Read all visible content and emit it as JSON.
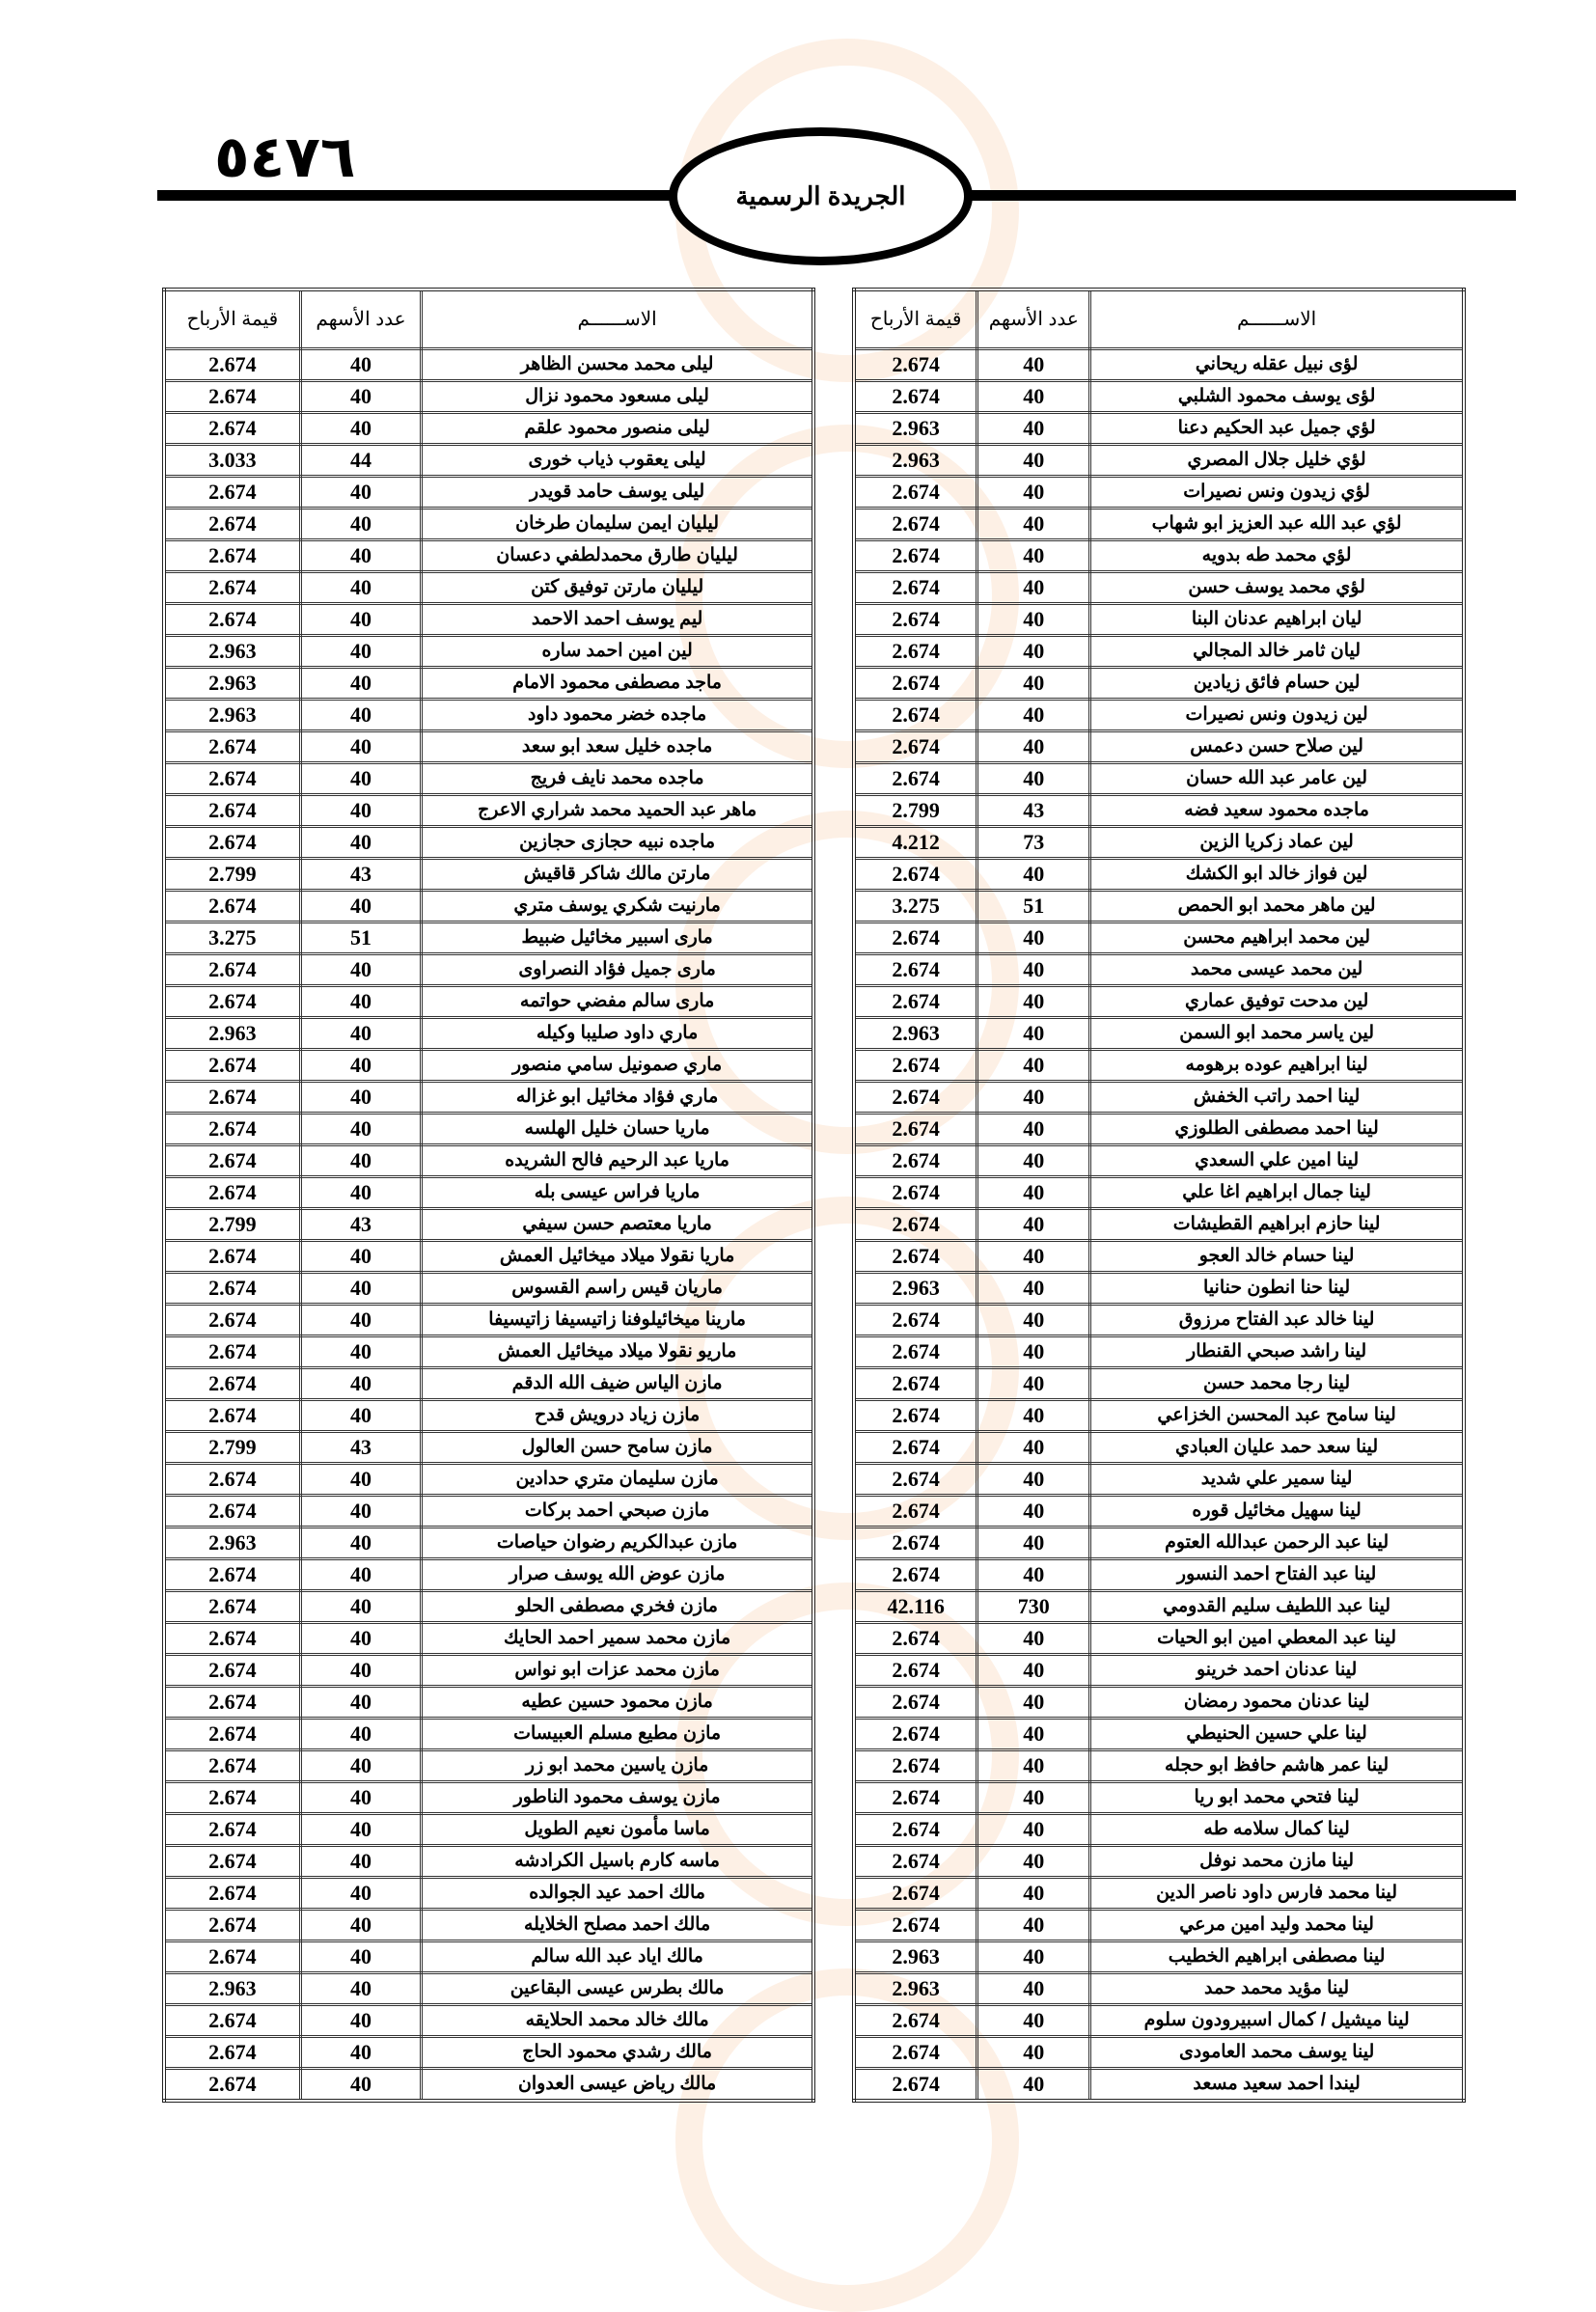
{
  "header": {
    "page_number": "٥٤٧٦",
    "title": "الجريدة الرسمية"
  },
  "colors": {
    "watermark_orange": "#f5aa6e",
    "text": "#000000"
  },
  "tables": [
    {
      "headers": {
        "name": "الاســــــم",
        "shares": "عدد الأسهم",
        "dividends": "قيمة الأرباح"
      },
      "rows": [
        [
          "لؤى نبيل عقله ريحاني",
          "40",
          "2.674"
        ],
        [
          "لؤى يوسف محمود الشلبي",
          "40",
          "2.674"
        ],
        [
          "لؤي جميل عبد الحكيم دعنا",
          "40",
          "2.963"
        ],
        [
          "لؤي خليل جلال المصري",
          "40",
          "2.963"
        ],
        [
          "لؤي زيدون ونس نصيرات",
          "40",
          "2.674"
        ],
        [
          "لؤي عبد الله عبد العزيز ابو شهاب",
          "40",
          "2.674"
        ],
        [
          "لؤي محمد طه بدويه",
          "40",
          "2.674"
        ],
        [
          "لؤي محمد يوسف حسن",
          "40",
          "2.674"
        ],
        [
          "ليان ابراهيم عدنان البنا",
          "40",
          "2.674"
        ],
        [
          "ليان ثامر خالد المجالي",
          "40",
          "2.674"
        ],
        [
          "لين حسام فائق زيادين",
          "40",
          "2.674"
        ],
        [
          "لين زيدون ونس نصيرات",
          "40",
          "2.674"
        ],
        [
          "لين صلاح حسن دعمس",
          "40",
          "2.674"
        ],
        [
          "لين عامر عبد الله حسان",
          "40",
          "2.674"
        ],
        [
          "ماجده محمود سعيد فضه",
          "43",
          "2.799"
        ],
        [
          "لين عماد زكريا الزين",
          "73",
          "4.212"
        ],
        [
          "لين فواز خالد ابو الكشك",
          "40",
          "2.674"
        ],
        [
          "لين ماهر محمد ابو الحمص",
          "51",
          "3.275"
        ],
        [
          "لين محمد ابراهيم محسن",
          "40",
          "2.674"
        ],
        [
          "لين محمد عيسى محمد",
          "40",
          "2.674"
        ],
        [
          "لين مدحت توفيق عماري",
          "40",
          "2.674"
        ],
        [
          "لين ياسر محمد ابو السمن",
          "40",
          "2.963"
        ],
        [
          "لينا ابراهيم عوده برهومه",
          "40",
          "2.674"
        ],
        [
          "لينا احمد راتب الخفش",
          "40",
          "2.674"
        ],
        [
          "لينا احمد مصطفى الطلوزي",
          "40",
          "2.674"
        ],
        [
          "لينا امين علي السعدي",
          "40",
          "2.674"
        ],
        [
          "لينا جمال ابراهيم اغا علي",
          "40",
          "2.674"
        ],
        [
          "لينا حازم ابراهيم القطيشات",
          "40",
          "2.674"
        ],
        [
          "لينا حسام خالد العجو",
          "40",
          "2.674"
        ],
        [
          "لينا حنا انطون حنانيا",
          "40",
          "2.963"
        ],
        [
          "لينا خالد عبد الفتاح مرزوق",
          "40",
          "2.674"
        ],
        [
          "لينا راشد صبحي القنطار",
          "40",
          "2.674"
        ],
        [
          "لينا رجا محمد حسن",
          "40",
          "2.674"
        ],
        [
          "لينا سامح عبد المحسن الخزاعي",
          "40",
          "2.674"
        ],
        [
          "لينا سعد حمد عليان العبادي",
          "40",
          "2.674"
        ],
        [
          "لينا سمير علي شديد",
          "40",
          "2.674"
        ],
        [
          "لينا سهيل مخائيل قوره",
          "40",
          "2.674"
        ],
        [
          "لينا عبد الرحمن عبدالله العتوم",
          "40",
          "2.674"
        ],
        [
          "لينا عبد الفتاح احمد النسور",
          "40",
          "2.674"
        ],
        [
          "لينا عبد اللطيف سليم القدومي",
          "730",
          "42.116"
        ],
        [
          "لينا عبد المعطي امين ابو الحيات",
          "40",
          "2.674"
        ],
        [
          "لينا عدنان احمد خرينو",
          "40",
          "2.674"
        ],
        [
          "لينا عدنان محمود رمضان",
          "40",
          "2.674"
        ],
        [
          "لينا علي حسين الحنيطي",
          "40",
          "2.674"
        ],
        [
          "لينا عمر هاشم حافظ ابو حجله",
          "40",
          "2.674"
        ],
        [
          "لينا فتحي محمد ابو ريا",
          "40",
          "2.674"
        ],
        [
          "لينا كمال سلامه طه",
          "40",
          "2.674"
        ],
        [
          "لينا مازن محمد نوفل",
          "40",
          "2.674"
        ],
        [
          "لينا محمد فارس داود ناصر الدين",
          "40",
          "2.674"
        ],
        [
          "لينا محمد وليد امين مرعي",
          "40",
          "2.674"
        ],
        [
          "لينا مصطفى ابراهيم الخطيب",
          "40",
          "2.963"
        ],
        [
          "لينا مؤيد محمد حمد",
          "40",
          "2.963"
        ],
        [
          "لينا ميشيل / كمال اسبيرودون سلوم",
          "40",
          "2.674"
        ],
        [
          "لينا يوسف محمد العامودى",
          "40",
          "2.674"
        ],
        [
          "ليندا احمد سعيد مسعد",
          "40",
          "2.674"
        ]
      ]
    },
    {
      "headers": {
        "name": "الاســــــم",
        "shares": "عدد الأسهم",
        "dividends": "قيمة الأرباح"
      },
      "rows": [
        [
          "ليلى محمد محسن الظاهر",
          "40",
          "2.674"
        ],
        [
          "ليلى مسعود محمود نزال",
          "40",
          "2.674"
        ],
        [
          "ليلى منصور محمود علقم",
          "40",
          "2.674"
        ],
        [
          "ليلى يعقوب ذياب خورى",
          "44",
          "3.033"
        ],
        [
          "ليلى يوسف حامد قويدر",
          "40",
          "2.674"
        ],
        [
          "ليليان ايمن سليمان طرخان",
          "40",
          "2.674"
        ],
        [
          "ليليان طارق محمدلطفي دعسان",
          "40",
          "2.674"
        ],
        [
          "ليليان مارتن توفيق كتن",
          "40",
          "2.674"
        ],
        [
          "ليم يوسف احمد الاحمد",
          "40",
          "2.674"
        ],
        [
          "لين امين احمد ساره",
          "40",
          "2.963"
        ],
        [
          "ماجد مصطفى محمود الامام",
          "40",
          "2.963"
        ],
        [
          "ماجده خضر محمود داود",
          "40",
          "2.963"
        ],
        [
          "ماجده خليل سعد ابو سعد",
          "40",
          "2.674"
        ],
        [
          "ماجده محمد نايف فريج",
          "40",
          "2.674"
        ],
        [
          "ماهر عبد الحميد محمد شراري الاعرج",
          "40",
          "2.674"
        ],
        [
          "ماجده نبيه حجازى حجازين",
          "40",
          "2.674"
        ],
        [
          "مارتن مالك شاكر قاقيش",
          "43",
          "2.799"
        ],
        [
          "مارنيت شكري يوسف متري",
          "40",
          "2.674"
        ],
        [
          "مارى اسبير مخائيل ضبيط",
          "51",
          "3.275"
        ],
        [
          "مارى جميل فؤاد النصراوى",
          "40",
          "2.674"
        ],
        [
          "مارى سالم مفضي حواتمه",
          "40",
          "2.674"
        ],
        [
          "ماري داود صليبا وكيله",
          "40",
          "2.963"
        ],
        [
          "ماري صمونيل سامي منصور",
          "40",
          "2.674"
        ],
        [
          "ماري فؤاد مخائيل ابو غزاله",
          "40",
          "2.674"
        ],
        [
          "ماريا حسان خليل الهلسه",
          "40",
          "2.674"
        ],
        [
          "ماريا عبد الرحيم فالح الشريده",
          "40",
          "2.674"
        ],
        [
          "ماريا فراس عيسى بله",
          "40",
          "2.674"
        ],
        [
          "ماريا معتصم حسن سيفي",
          "43",
          "2.799"
        ],
        [
          "ماريا نقولا ميلاد ميخائيل العمش",
          "40",
          "2.674"
        ],
        [
          "ماريان قيس راسم القسوس",
          "40",
          "2.674"
        ],
        [
          "مارينا ميخائيلوفنا زاتيسيفا زاتيسيفا",
          "40",
          "2.674"
        ],
        [
          "ماريو نقولا ميلاد ميخائيل العمش",
          "40",
          "2.674"
        ],
        [
          "مازن الياس ضيف الله الدقم",
          "40",
          "2.674"
        ],
        [
          "مازن زياد درويش قدح",
          "40",
          "2.674"
        ],
        [
          "مازن سامح حسن العالول",
          "43",
          "2.799"
        ],
        [
          "مازن سليمان متري حدادين",
          "40",
          "2.674"
        ],
        [
          "مازن صبحي احمد بركات",
          "40",
          "2.674"
        ],
        [
          "مازن عبدالكريم رضوان حياصات",
          "40",
          "2.963"
        ],
        [
          "مازن عوض الله يوسف صرار",
          "40",
          "2.674"
        ],
        [
          "مازن فخري مصطفى الحلو",
          "40",
          "2.674"
        ],
        [
          "مازن محمد سمير احمد الحايك",
          "40",
          "2.674"
        ],
        [
          "مازن محمد عزات ابو نواس",
          "40",
          "2.674"
        ],
        [
          "مازن محمود حسين عطيه",
          "40",
          "2.674"
        ],
        [
          "مازن مطيع مسلم العبيسات",
          "40",
          "2.674"
        ],
        [
          "مازن ياسين محمد ابو زر",
          "40",
          "2.674"
        ],
        [
          "مازن يوسف محمود الناطور",
          "40",
          "2.674"
        ],
        [
          "ماسا مأمون نعيم الطويل",
          "40",
          "2.674"
        ],
        [
          "ماسه كارم باسيل الكرادشه",
          "40",
          "2.674"
        ],
        [
          "مالك احمد عيد الجوالده",
          "40",
          "2.674"
        ],
        [
          "مالك احمد مصلح الخلايله",
          "40",
          "2.674"
        ],
        [
          "مالك اياد عبد الله سالم",
          "40",
          "2.674"
        ],
        [
          "مالك بطرس عيسى البقاعين",
          "40",
          "2.963"
        ],
        [
          "مالك خالد محمد الحلايقه",
          "40",
          "2.674"
        ],
        [
          "مالك رشدي محمود الحاج",
          "40",
          "2.674"
        ],
        [
          "مالك رياض عيسى العدوان",
          "40",
          "2.674"
        ]
      ]
    }
  ]
}
